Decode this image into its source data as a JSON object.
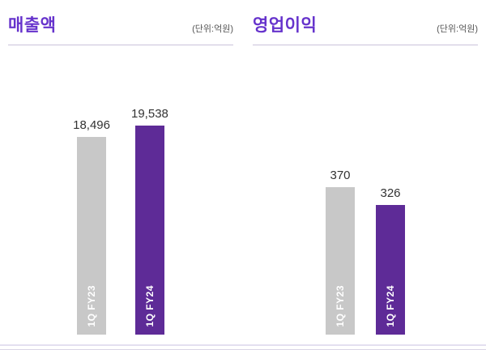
{
  "colors": {
    "accent": "#6633cc",
    "bar_fy23": "#c8c8c8",
    "bar_fy24": "#5e2b97",
    "value_text": "#333333"
  },
  "chart_data": [
    {
      "type": "bar",
      "title": "매출액",
      "unit": "(단위:억원)",
      "categories": [
        "1Q FY23",
        "1Q FY24"
      ],
      "values": [
        18496,
        19538
      ],
      "value_labels": [
        "18,496",
        "19,538"
      ],
      "ylim": [
        0,
        22000
      ],
      "legend": "none",
      "grid": false
    },
    {
      "type": "bar",
      "title": "영업이익",
      "unit": "(단위:억원)",
      "categories": [
        "1Q FY23",
        "1Q FY24"
      ],
      "values": [
        370,
        326
      ],
      "value_labels": [
        "370",
        "326"
      ],
      "ylim": [
        0,
        590
      ],
      "legend": "none",
      "grid": false
    }
  ]
}
